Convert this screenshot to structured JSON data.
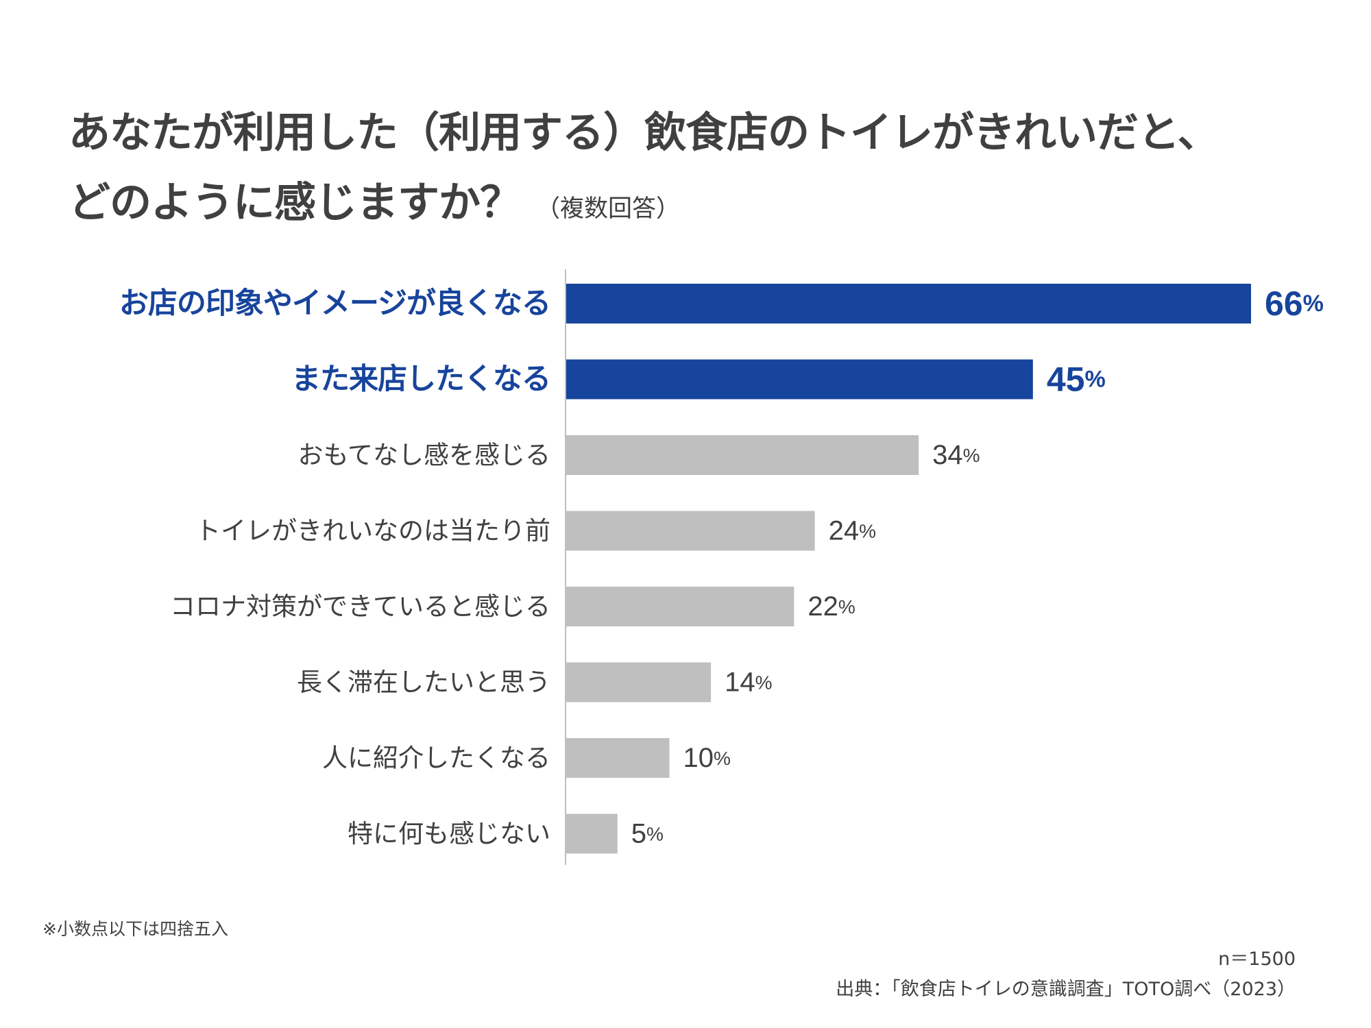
{
  "title": {
    "line1": "あなたが利用した（利用する）飲食店のトイレがきれいだと、",
    "line2": "どのように感じますか？",
    "subtitle": "（複数回答）"
  },
  "chart_data": {
    "type": "bar",
    "orientation": "horizontal",
    "categories": [
      "お店の印象やイメージが良くなる",
      "また来店したくなる",
      "おもてなし感を感じる",
      "トイレがきれいなのは当たり前",
      "コロナ対策ができていると感じる",
      "長く滞在したいと思う",
      "人に紹介したくなる",
      "特に何も感じない"
    ],
    "values": [
      66,
      45,
      34,
      24,
      22,
      14,
      10,
      5
    ],
    "unit": "%",
    "highlighted": [
      true,
      true,
      false,
      false,
      false,
      false,
      false,
      false
    ],
    "colors": {
      "highlight": "#17449C",
      "normal": "#BFBFBF",
      "label_normal": "#404040",
      "axis": "#BFBFBF"
    }
  },
  "footnote": "※小数点以下は四捨五入",
  "sample": "n＝1500",
  "source": "出典：「飲食店トイレの意識調査」TOTO調べ（2023）"
}
